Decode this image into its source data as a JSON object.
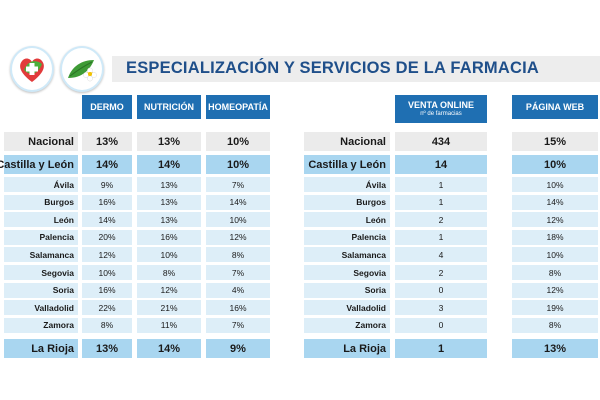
{
  "title": "ESPECIALIZACIÓN Y SERVICIOS DE LA FARMACIA",
  "colors": {
    "header_blue": "#1f6fb2",
    "title_blue": "#1f4f8a",
    "row_blue": "#a9d6f0",
    "row_light": "#ddeef8",
    "row_grey": "#ebebeb"
  },
  "logos": [
    "heart-cross-logo",
    "flower-logo"
  ],
  "columns": {
    "dermo": "DERMO",
    "nutricion": "NUTRICIÓN",
    "homeopatia": "HOMEOPATÍA",
    "venta_online": "VENTA ONLINE",
    "venta_online_sub": "nº de farmacias",
    "pagina_web": "PÁGINA WEB"
  },
  "rows": [
    {
      "name": "Nacional",
      "dermo": "13%",
      "nutricion": "13%",
      "homeopatia": "10%",
      "venta_online": "434",
      "pagina_web": "15%"
    },
    {
      "name": "Castilla y León",
      "dermo": "14%",
      "nutricion": "14%",
      "homeopatia": "10%",
      "venta_online": "14",
      "pagina_web": "10%"
    },
    {
      "name": "Ávila",
      "dermo": "9%",
      "nutricion": "13%",
      "homeopatia": "7%",
      "venta_online": "1",
      "pagina_web": "10%"
    },
    {
      "name": "Burgos",
      "dermo": "16%",
      "nutricion": "13%",
      "homeopatia": "14%",
      "venta_online": "1",
      "pagina_web": "14%"
    },
    {
      "name": "León",
      "dermo": "14%",
      "nutricion": "13%",
      "homeopatia": "10%",
      "venta_online": "2",
      "pagina_web": "12%"
    },
    {
      "name": "Palencia",
      "dermo": "20%",
      "nutricion": "16%",
      "homeopatia": "12%",
      "venta_online": "1",
      "pagina_web": "18%"
    },
    {
      "name": "Salamanca",
      "dermo": "12%",
      "nutricion": "10%",
      "homeopatia": "8%",
      "venta_online": "4",
      "pagina_web": "10%"
    },
    {
      "name": "Segovia",
      "dermo": "10%",
      "nutricion": "8%",
      "homeopatia": "7%",
      "venta_online": "2",
      "pagina_web": "8%"
    },
    {
      "name": "Soria",
      "dermo": "16%",
      "nutricion": "12%",
      "homeopatia": "4%",
      "venta_online": "0",
      "pagina_web": "12%"
    },
    {
      "name": "Valladolid",
      "dermo": "22%",
      "nutricion": "21%",
      "homeopatia": "16%",
      "venta_online": "3",
      "pagina_web": "19%"
    },
    {
      "name": "Zamora",
      "dermo": "8%",
      "nutricion": "11%",
      "homeopatia": "7%",
      "venta_online": "0",
      "pagina_web": "8%"
    },
    {
      "name": "La Rioja",
      "dermo": "13%",
      "nutricion": "14%",
      "homeopatia": "9%",
      "venta_online": "1",
      "pagina_web": "13%"
    }
  ]
}
